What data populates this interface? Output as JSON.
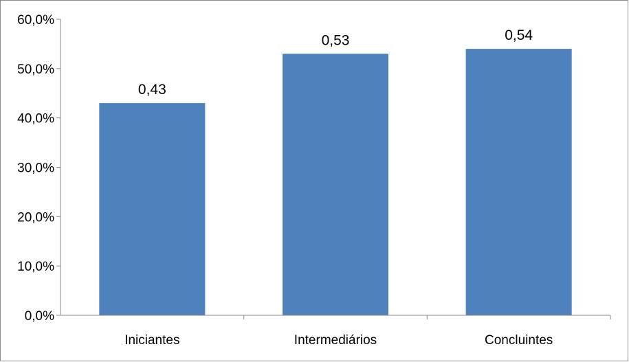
{
  "chart_data": {
    "type": "bar",
    "categories": [
      "Iniciantes",
      "Intermediários",
      "Concluintes"
    ],
    "values": [
      0.43,
      0.53,
      0.54
    ],
    "data_labels": [
      "0,43",
      "0,53",
      "0,54"
    ],
    "ylim": [
      0,
      0.6
    ],
    "yticks": [
      0,
      0.1,
      0.2,
      0.3,
      0.4,
      0.5,
      0.6
    ],
    "ytick_labels": [
      "0,0%",
      "10,0%",
      "20,0%",
      "30,0%",
      "40,0%",
      "50,0%",
      "60,0%"
    ],
    "bar_color": "#4f81bd",
    "axis_color": "#868686",
    "grid": false,
    "legend": "none"
  }
}
